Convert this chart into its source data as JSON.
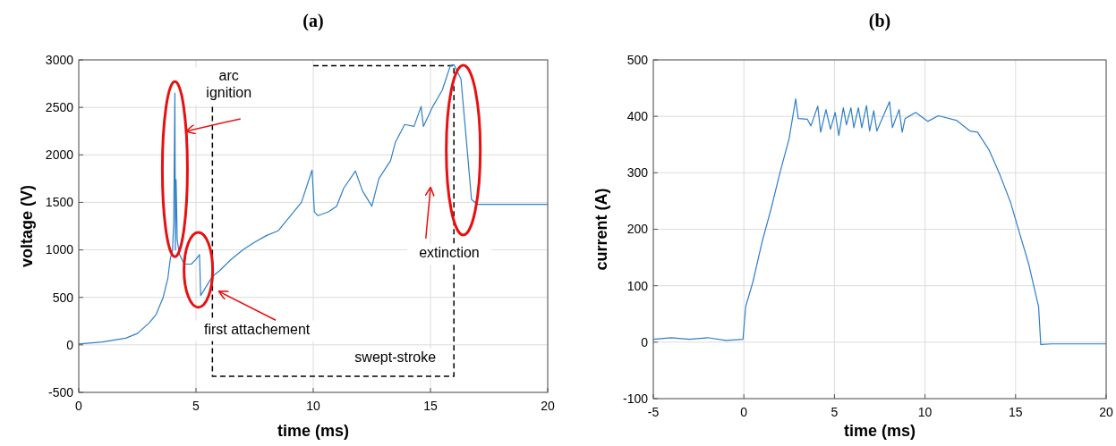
{
  "chart_data": [
    {
      "type": "line",
      "title": "(a)",
      "xlabel": "time (ms)",
      "ylabel": "voltage (V)",
      "xlim": [
        0,
        20
      ],
      "ylim": [
        -500,
        3000
      ],
      "xticks": [
        0,
        5,
        10,
        15,
        20
      ],
      "yticks": [
        -500,
        0,
        500,
        1000,
        1500,
        2000,
        2500,
        3000
      ],
      "grid": true,
      "series": [
        {
          "color": "#2f7fc8",
          "x": [
            0,
            1,
            2,
            2.5,
            3,
            3.3,
            3.6,
            3.8,
            3.9,
            4.0,
            4.05,
            4.1,
            4.12,
            4.15,
            4.2,
            4.3,
            4.5,
            4.8,
            5.0,
            5.15,
            5.2,
            5.5,
            5.7,
            6,
            6.5,
            7,
            7.5,
            8,
            8.5,
            9,
            9.5,
            9.95,
            10.05,
            10.2,
            10.65,
            11.0,
            11.3,
            11.8,
            12.1,
            12.5,
            12.8,
            13.3,
            13.5,
            13.9,
            14.3,
            14.6,
            14.7,
            15.1,
            15.5,
            15.85,
            16.0,
            16.3,
            16.55,
            16.75,
            17.0,
            18,
            19,
            20
          ],
          "values": [
            10,
            30,
            70,
            120,
            230,
            320,
            500,
            700,
            900,
            1000,
            1300,
            2650,
            1000,
            1740,
            1100,
            950,
            850,
            850,
            900,
            950,
            520,
            640,
            720,
            780,
            900,
            1000,
            1080,
            1150,
            1200,
            1350,
            1500,
            1840,
            1400,
            1360,
            1400,
            1460,
            1650,
            1830,
            1620,
            1460,
            1750,
            1940,
            2130,
            2320,
            2300,
            2510,
            2300,
            2510,
            2680,
            2940,
            2950,
            2800,
            2100,
            1530,
            1480,
            1480,
            1480,
            1480
          ]
        }
      ],
      "annotations": [
        "arc ignition",
        "first attachement",
        "extinction",
        "swept-stroke"
      ]
    },
    {
      "type": "line",
      "title": "(b)",
      "xlabel": "time (ms)",
      "ylabel": "current (A)",
      "xlim": [
        -5,
        20
      ],
      "ylim": [
        -100,
        500
      ],
      "xticks": [
        -5,
        0,
        5,
        10,
        15,
        20
      ],
      "yticks": [
        -100,
        0,
        100,
        200,
        300,
        400,
        500
      ],
      "grid": true,
      "series": [
        {
          "color": "#2f7fc8",
          "x": [
            -5,
            -4,
            -3,
            -2,
            -1,
            -0.05,
            0.1,
            0.5,
            1,
            1.5,
            2,
            2.5,
            2.86,
            3.0,
            3.5,
            3.7,
            4.08,
            4.24,
            4.53,
            4.78,
            5.04,
            5.24,
            5.49,
            5.66,
            5.91,
            6.07,
            6.32,
            6.51,
            6.77,
            6.94,
            7.17,
            7.34,
            8.04,
            8.2,
            8.57,
            8.74,
            8.9,
            9.48,
            10.15,
            10.73,
            11.73,
            12.48,
            12.9,
            13.56,
            14.14,
            14.73,
            15.22,
            15.72,
            16.27,
            16.39,
            17,
            18,
            19,
            20
          ],
          "values": [
            5,
            8,
            5,
            8,
            3,
            5,
            63,
            107,
            177,
            236,
            301,
            361,
            431,
            396,
            395,
            383,
            418,
            372,
            412,
            377,
            407,
            366,
            415,
            385,
            415,
            380,
            415,
            380,
            419,
            374,
            410,
            374,
            426,
            380,
            412,
            372,
            396,
            407,
            391,
            401,
            393,
            374,
            372,
            339,
            296,
            247,
            193,
            139,
            63,
            -4,
            -3,
            -3,
            -3,
            -3
          ]
        }
      ]
    }
  ]
}
